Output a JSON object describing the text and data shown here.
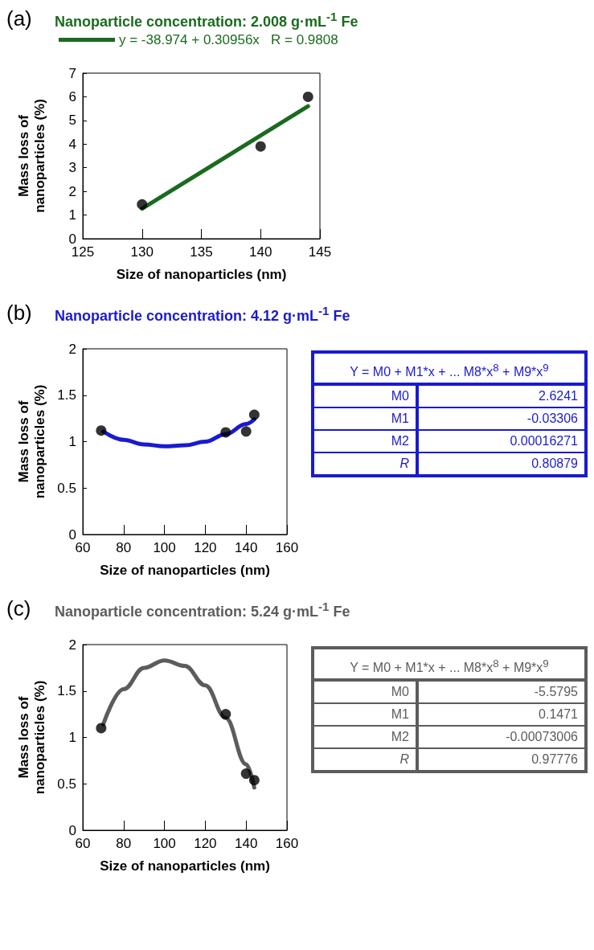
{
  "chart_data": [
    {
      "type": "scatter",
      "title": "Nanoparticle concentration: 2.008 g·mL$^{-1}$ Fe",
      "xlabel": "Size of nanoparticles (nm)",
      "ylabel": "Mass loss of nanoparticles (%)",
      "annotations": [
        "(a)"
      ],
      "series": [
        {
          "color": "#000000",
          "marker": "circle",
          "x": [
            130,
            140,
            144
          ],
          "values": [
            1.45,
            3.9,
            6.0
          ]
        },
        {
          "type": "line",
          "marker": "none",
          "name": "y = -38.974 + 0.30956x   R = 0.9808",
          "color": "#1a6b1f",
          "x": [
            130,
            144
          ],
          "values": [
            1.27,
            5.6
          ]
        }
      ],
      "xlim": [
        125,
        145
      ],
      "xticks": [
        125,
        130,
        135,
        140,
        145
      ],
      "ylim": [
        0,
        7
      ],
      "yticks": [
        0,
        1,
        2,
        3,
        4,
        5,
        6,
        7
      ],
      "grid": false,
      "legend": "top",
      "line_style": "solid"
    },
    {
      "type": "scatter",
      "title": "Nanoparticle concentration: 4.12 g·mL$^{-1}$ Fe",
      "xlabel": "Size of nanoparticles (nm)",
      "ylabel": "Mass loss of nanoparticles (%)",
      "annotations": [
        "(b)",
        "Y = M0 + M1*x + ... M8*x$^{8}$ + M9*x$^{9}$",
        "M0",
        "2.6241",
        "M1",
        "-0.03306",
        "M2",
        "0.00016271",
        "R",
        "0.80879"
      ],
      "series": [
        {
          "color": "#000000",
          "marker": "circle",
          "x": [
            69,
            130,
            140,
            144
          ],
          "values": [
            1.12,
            1.1,
            1.11,
            1.29
          ]
        },
        {
          "type": "line",
          "marker": "none",
          "color": "#1a1ad0",
          "x": [
            70,
            80,
            90,
            100,
            110,
            120,
            130,
            140,
            144
          ],
          "values": [
            1.11,
            1.02,
            0.97,
            0.95,
            0.96,
            1.0,
            1.08,
            1.19,
            1.24
          ]
        }
      ],
      "xlim": [
        60,
        160
      ],
      "xticks": [
        60,
        80,
        100,
        120,
        140,
        160
      ],
      "ylim": [
        0,
        2
      ],
      "yticks": [
        0,
        0.5,
        1,
        1.5,
        2
      ],
      "grid": false,
      "line_style": "solid"
    },
    {
      "type": "scatter",
      "title": "Nanoparticle concentration: 5.24 g·mL$^{-1}$ Fe",
      "xlabel": "Size of nanoparticles (nm)",
      "ylabel": "Mass loss of nanoparticles (%)",
      "annotations": [
        "(c)",
        "Y = M0 + M1*x + ... M8*x$^{8}$ + M9*x$^{9}$",
        "M0",
        "-5.5795",
        "M1",
        "0.1471",
        "M2",
        "-0.00073006",
        "R",
        "0.97776"
      ],
      "series": [
        {
          "color": "#000000",
          "marker": "circle",
          "x": [
            69,
            130,
            140,
            144
          ],
          "values": [
            1.1,
            1.25,
            0.61,
            0.54
          ]
        },
        {
          "type": "line",
          "marker": "none",
          "color": "#5c5c5c",
          "x": [
            70,
            80,
            90,
            100,
            110,
            120,
            130,
            140,
            144
          ],
          "values": [
            1.14,
            1.52,
            1.75,
            1.83,
            1.77,
            1.56,
            1.21,
            0.71,
            0.46
          ]
        }
      ],
      "xlim": [
        60,
        160
      ],
      "xticks": [
        60,
        80,
        100,
        120,
        140,
        160
      ],
      "ylim": [
        0,
        2
      ],
      "yticks": [
        0,
        0.5,
        1,
        1.5,
        2
      ],
      "grid": false,
      "line_style": "solid"
    }
  ]
}
